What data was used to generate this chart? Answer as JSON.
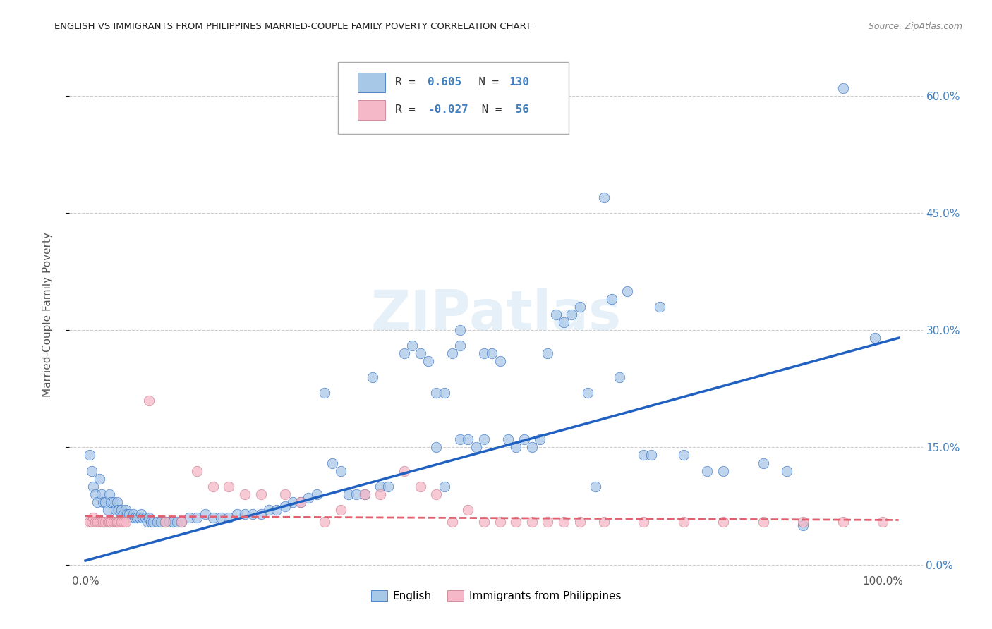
{
  "title": "ENGLISH VS IMMIGRANTS FROM PHILIPPINES MARRIED-COUPLE FAMILY POVERTY CORRELATION CHART",
  "source": "Source: ZipAtlas.com",
  "ylabel": "Married-Couple Family Poverty",
  "legend_bottom": [
    "English",
    "Immigrants from Philippines"
  ],
  "color_blue": "#a8c8e8",
  "color_pink": "#f5b8c8",
  "color_blue_line": "#2060c0",
  "color_pink_line": "#e06070",
  "blue_scatter": [
    [
      0.005,
      0.14
    ],
    [
      0.008,
      0.12
    ],
    [
      0.01,
      0.1
    ],
    [
      0.012,
      0.09
    ],
    [
      0.015,
      0.08
    ],
    [
      0.018,
      0.11
    ],
    [
      0.02,
      0.09
    ],
    [
      0.022,
      0.08
    ],
    [
      0.025,
      0.08
    ],
    [
      0.028,
      0.07
    ],
    [
      0.03,
      0.09
    ],
    [
      0.032,
      0.08
    ],
    [
      0.035,
      0.08
    ],
    [
      0.038,
      0.07
    ],
    [
      0.04,
      0.08
    ],
    [
      0.042,
      0.07
    ],
    [
      0.045,
      0.07
    ],
    [
      0.048,
      0.065
    ],
    [
      0.05,
      0.07
    ],
    [
      0.052,
      0.065
    ],
    [
      0.055,
      0.065
    ],
    [
      0.058,
      0.06
    ],
    [
      0.06,
      0.065
    ],
    [
      0.062,
      0.06
    ],
    [
      0.065,
      0.06
    ],
    [
      0.068,
      0.06
    ],
    [
      0.07,
      0.065
    ],
    [
      0.072,
      0.06
    ],
    [
      0.075,
      0.06
    ],
    [
      0.078,
      0.055
    ],
    [
      0.08,
      0.06
    ],
    [
      0.082,
      0.055
    ],
    [
      0.085,
      0.055
    ],
    [
      0.09,
      0.055
    ],
    [
      0.095,
      0.055
    ],
    [
      0.1,
      0.055
    ],
    [
      0.105,
      0.055
    ],
    [
      0.11,
      0.055
    ],
    [
      0.115,
      0.055
    ],
    [
      0.12,
      0.055
    ],
    [
      0.13,
      0.06
    ],
    [
      0.14,
      0.06
    ],
    [
      0.15,
      0.065
    ],
    [
      0.16,
      0.06
    ],
    [
      0.17,
      0.06
    ],
    [
      0.18,
      0.06
    ],
    [
      0.19,
      0.065
    ],
    [
      0.2,
      0.065
    ],
    [
      0.21,
      0.065
    ],
    [
      0.22,
      0.065
    ],
    [
      0.23,
      0.07
    ],
    [
      0.24,
      0.07
    ],
    [
      0.25,
      0.075
    ],
    [
      0.26,
      0.08
    ],
    [
      0.27,
      0.08
    ],
    [
      0.28,
      0.085
    ],
    [
      0.29,
      0.09
    ],
    [
      0.3,
      0.22
    ],
    [
      0.31,
      0.13
    ],
    [
      0.32,
      0.12
    ],
    [
      0.33,
      0.09
    ],
    [
      0.34,
      0.09
    ],
    [
      0.35,
      0.09
    ],
    [
      0.36,
      0.24
    ],
    [
      0.37,
      0.1
    ],
    [
      0.38,
      0.1
    ],
    [
      0.4,
      0.27
    ],
    [
      0.41,
      0.28
    ],
    [
      0.42,
      0.27
    ],
    [
      0.43,
      0.26
    ],
    [
      0.44,
      0.22
    ],
    [
      0.44,
      0.15
    ],
    [
      0.45,
      0.22
    ],
    [
      0.45,
      0.1
    ],
    [
      0.46,
      0.27
    ],
    [
      0.47,
      0.28
    ],
    [
      0.47,
      0.3
    ],
    [
      0.47,
      0.16
    ],
    [
      0.48,
      0.16
    ],
    [
      0.49,
      0.15
    ],
    [
      0.5,
      0.27
    ],
    [
      0.5,
      0.16
    ],
    [
      0.51,
      0.27
    ],
    [
      0.52,
      0.26
    ],
    [
      0.53,
      0.16
    ],
    [
      0.54,
      0.15
    ],
    [
      0.55,
      0.16
    ],
    [
      0.56,
      0.15
    ],
    [
      0.57,
      0.16
    ],
    [
      0.58,
      0.27
    ],
    [
      0.59,
      0.32
    ],
    [
      0.6,
      0.31
    ],
    [
      0.61,
      0.32
    ],
    [
      0.62,
      0.33
    ],
    [
      0.63,
      0.22
    ],
    [
      0.64,
      0.1
    ],
    [
      0.65,
      0.47
    ],
    [
      0.66,
      0.34
    ],
    [
      0.67,
      0.24
    ],
    [
      0.68,
      0.35
    ],
    [
      0.7,
      0.14
    ],
    [
      0.71,
      0.14
    ],
    [
      0.72,
      0.33
    ],
    [
      0.75,
      0.14
    ],
    [
      0.78,
      0.12
    ],
    [
      0.8,
      0.12
    ],
    [
      0.85,
      0.13
    ],
    [
      0.88,
      0.12
    ],
    [
      0.9,
      0.05
    ],
    [
      0.95,
      0.61
    ],
    [
      0.99,
      0.29
    ]
  ],
  "pink_scatter": [
    [
      0.005,
      0.055
    ],
    [
      0.008,
      0.055
    ],
    [
      0.01,
      0.06
    ],
    [
      0.012,
      0.055
    ],
    [
      0.015,
      0.055
    ],
    [
      0.018,
      0.055
    ],
    [
      0.02,
      0.055
    ],
    [
      0.022,
      0.055
    ],
    [
      0.025,
      0.055
    ],
    [
      0.028,
      0.055
    ],
    [
      0.03,
      0.055
    ],
    [
      0.032,
      0.055
    ],
    [
      0.035,
      0.055
    ],
    [
      0.038,
      0.055
    ],
    [
      0.04,
      0.055
    ],
    [
      0.042,
      0.055
    ],
    [
      0.045,
      0.055
    ],
    [
      0.048,
      0.055
    ],
    [
      0.05,
      0.055
    ],
    [
      0.08,
      0.21
    ],
    [
      0.1,
      0.055
    ],
    [
      0.12,
      0.055
    ],
    [
      0.14,
      0.12
    ],
    [
      0.16,
      0.1
    ],
    [
      0.18,
      0.1
    ],
    [
      0.2,
      0.09
    ],
    [
      0.22,
      0.09
    ],
    [
      0.25,
      0.09
    ],
    [
      0.27,
      0.08
    ],
    [
      0.3,
      0.055
    ],
    [
      0.32,
      0.07
    ],
    [
      0.35,
      0.09
    ],
    [
      0.37,
      0.09
    ],
    [
      0.4,
      0.12
    ],
    [
      0.42,
      0.1
    ],
    [
      0.44,
      0.09
    ],
    [
      0.46,
      0.055
    ],
    [
      0.48,
      0.07
    ],
    [
      0.5,
      0.055
    ],
    [
      0.52,
      0.055
    ],
    [
      0.54,
      0.055
    ],
    [
      0.56,
      0.055
    ],
    [
      0.58,
      0.055
    ],
    [
      0.6,
      0.055
    ],
    [
      0.62,
      0.055
    ],
    [
      0.65,
      0.055
    ],
    [
      0.7,
      0.055
    ],
    [
      0.75,
      0.055
    ],
    [
      0.8,
      0.055
    ],
    [
      0.85,
      0.055
    ],
    [
      0.9,
      0.055
    ],
    [
      0.95,
      0.055
    ],
    [
      1.0,
      0.055
    ]
  ],
  "blue_line": [
    [
      0.0,
      0.005
    ],
    [
      1.02,
      0.29
    ]
  ],
  "pink_line": [
    [
      0.0,
      0.062
    ],
    [
      1.02,
      0.057
    ]
  ],
  "xlim": [
    -0.02,
    1.05
  ],
  "ylim": [
    -0.01,
    0.65
  ],
  "yticks": [
    0.0,
    0.15,
    0.3,
    0.45,
    0.6
  ],
  "xticks_show": [
    0.0,
    1.0
  ]
}
